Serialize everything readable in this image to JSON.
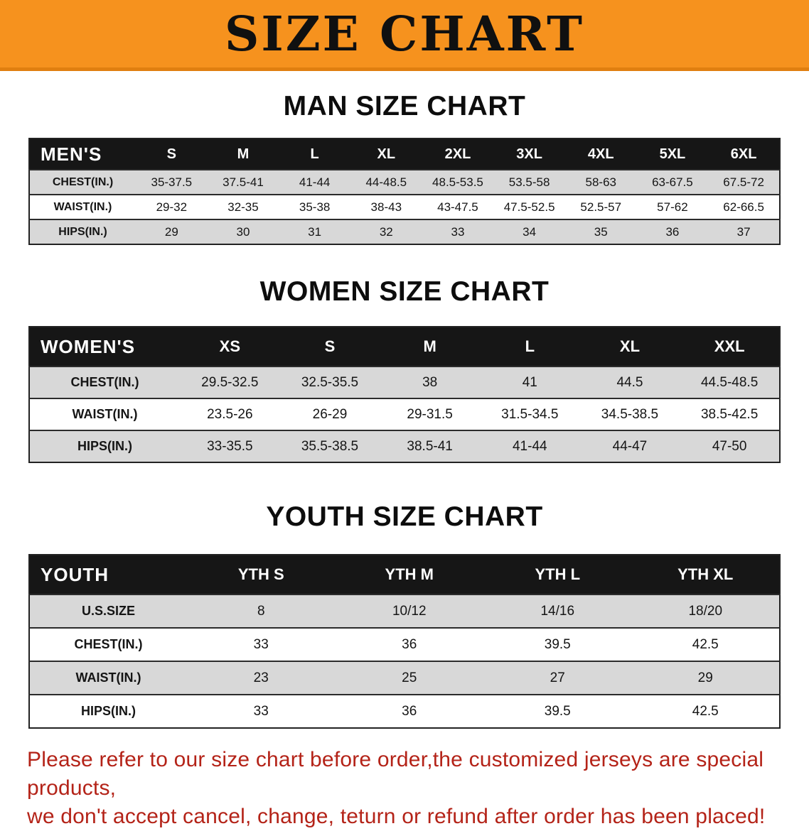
{
  "banner": {
    "title": "SIZE CHART"
  },
  "sections": [
    {
      "id": "men",
      "heading": "MAN SIZE CHART",
      "table": {
        "header": [
          "MEN'S",
          "S",
          "M",
          "L",
          "XL",
          "2XL",
          "3XL",
          "4XL",
          "5XL",
          "6XL"
        ],
        "rows": [
          [
            "CHEST(IN.)",
            "35-37.5",
            "37.5-41",
            "41-44",
            "44-48.5",
            "48.5-53.5",
            "53.5-58",
            "58-63",
            "63-67.5",
            "67.5-72"
          ],
          [
            "WAIST(IN.)",
            "29-32",
            "32-35",
            "35-38",
            "38-43",
            "43-47.5",
            "47.5-52.5",
            "52.5-57",
            "57-62",
            "62-66.5"
          ],
          [
            "HIPS(IN.)",
            "29",
            "30",
            "31",
            "32",
            "33",
            "34",
            "35",
            "36",
            "37"
          ]
        ]
      }
    },
    {
      "id": "women",
      "heading": "WOMEN SIZE CHART",
      "table": {
        "header": [
          "WOMEN'S",
          "XS",
          "S",
          "M",
          "L",
          "XL",
          "XXL"
        ],
        "rows": [
          [
            "CHEST(IN.)",
            "29.5-32.5",
            "32.5-35.5",
            "38",
            "41",
            "44.5",
            "44.5-48.5"
          ],
          [
            "WAIST(IN.)",
            "23.5-26",
            "26-29",
            "29-31.5",
            "31.5-34.5",
            "34.5-38.5",
            "38.5-42.5"
          ],
          [
            "HIPS(IN.)",
            "33-35.5",
            "35.5-38.5",
            "38.5-41",
            "41-44",
            "44-47",
            "47-50"
          ]
        ]
      }
    },
    {
      "id": "youth",
      "heading": "YOUTH SIZE CHART",
      "table": {
        "header": [
          "YOUTH",
          "YTH S",
          "YTH M",
          "YTH L",
          "YTH XL"
        ],
        "rows": [
          [
            "U.S.SIZE",
            "8",
            "10/12",
            "14/16",
            "18/20"
          ],
          [
            "CHEST(IN.)",
            "33",
            "36",
            "39.5",
            "42.5"
          ],
          [
            "WAIST(IN.)",
            "23",
            "25",
            "27",
            "29"
          ],
          [
            "HIPS(IN.)",
            "33",
            "36",
            "39.5",
            "42.5"
          ]
        ]
      }
    }
  ],
  "footer_note": {
    "lines": [
      "Please refer to our size chart before order,the customized jerseys are special products,",
      "we don't accept cancel, change, teturn or refund after order has been placed!"
    ]
  },
  "colors": {
    "banner_bg": "#F6921E",
    "table_header_bg": "#161616",
    "row_shade": "#D8D8D8",
    "note_red": "#B42318"
  }
}
